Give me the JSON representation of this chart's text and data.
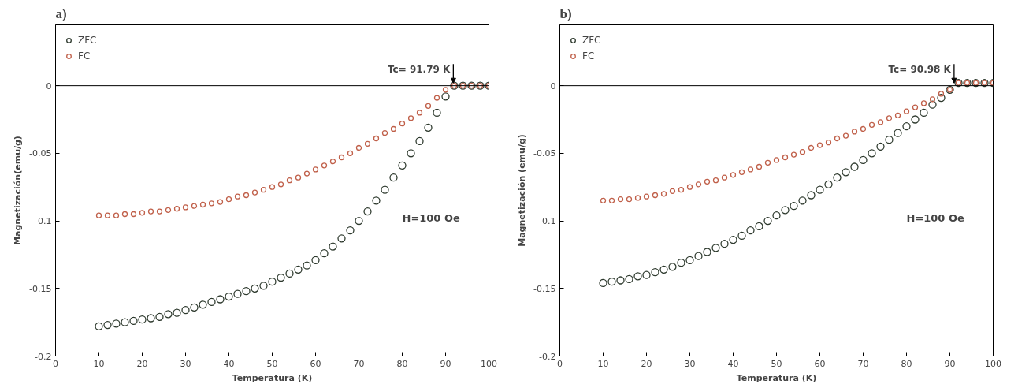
{
  "chart_data": [
    {
      "type": "scatter",
      "title": "a)",
      "xlabel": "Temperatura (K)",
      "ylabel": "Magnetización(emu/g)",
      "x": [
        10,
        12,
        14,
        16,
        18,
        20,
        22,
        24,
        26,
        28,
        30,
        32,
        34,
        36,
        38,
        40,
        42,
        44,
        46,
        48,
        50,
        52,
        54,
        56,
        58,
        60,
        62,
        64,
        66,
        68,
        70,
        72,
        74,
        76,
        78,
        80,
        82,
        84,
        86,
        88,
        90,
        92,
        94,
        96,
        98,
        100
      ],
      "series": [
        {
          "name": "ZFC",
          "color": "#2e3a2e",
          "values": [
            -0.178,
            -0.177,
            -0.176,
            -0.175,
            -0.174,
            -0.173,
            -0.172,
            -0.171,
            -0.169,
            -0.168,
            -0.166,
            -0.164,
            -0.162,
            -0.16,
            -0.158,
            -0.156,
            -0.154,
            -0.152,
            -0.15,
            -0.148,
            -0.145,
            -0.142,
            -0.139,
            -0.136,
            -0.133,
            -0.129,
            -0.124,
            -0.119,
            -0.113,
            -0.107,
            -0.1,
            -0.093,
            -0.085,
            -0.077,
            -0.068,
            -0.059,
            -0.05,
            -0.041,
            -0.031,
            -0.02,
            -0.008,
            0.0,
            0.0,
            0.0,
            0.0,
            0.0
          ]
        },
        {
          "name": "FC",
          "color": "#c0604a",
          "values": [
            -0.096,
            -0.096,
            -0.096,
            -0.095,
            -0.095,
            -0.094,
            -0.093,
            -0.093,
            -0.092,
            -0.091,
            -0.09,
            -0.089,
            -0.088,
            -0.087,
            -0.086,
            -0.084,
            -0.082,
            -0.081,
            -0.079,
            -0.077,
            -0.075,
            -0.073,
            -0.07,
            -0.068,
            -0.065,
            -0.062,
            -0.059,
            -0.056,
            -0.053,
            -0.05,
            -0.046,
            -0.043,
            -0.039,
            -0.035,
            -0.032,
            -0.028,
            -0.024,
            -0.02,
            -0.015,
            -0.009,
            -0.003,
            0.0,
            0.0,
            0.0,
            0.0,
            0.0
          ]
        }
      ],
      "xlim": [
        0,
        100
      ],
      "xticks": [
        0,
        10,
        20,
        30,
        40,
        50,
        60,
        70,
        80,
        90,
        100
      ],
      "ylim": [
        -0.2,
        0.045
      ],
      "yticks": [
        {
          "value": 0,
          "label": "0"
        },
        {
          "value": -0.05,
          "label": "-0.05"
        },
        {
          "value": -0.1,
          "label": "-0.1"
        },
        {
          "value": -0.15,
          "label": "-0.15"
        },
        {
          "value": -0.2,
          "label": "-0.2"
        }
      ],
      "ref_lines": [
        {
          "axis": "y",
          "value": 0,
          "color": "#000000"
        }
      ],
      "annotations": [
        {
          "text": "Tc= 91.79 K",
          "x": 91.79,
          "y": 0
        },
        "H=100 Oe"
      ],
      "marker": "circle",
      "legend": "top left",
      "grid": false
    },
    {
      "type": "scatter",
      "title": "b)",
      "xlabel": "Temperatura (K)",
      "ylabel": "Magnetización (emu/g)",
      "x": [
        10,
        12,
        14,
        16,
        18,
        20,
        22,
        24,
        26,
        28,
        30,
        32,
        34,
        36,
        38,
        40,
        42,
        44,
        46,
        48,
        50,
        52,
        54,
        56,
        58,
        60,
        62,
        64,
        66,
        68,
        70,
        72,
        74,
        76,
        78,
        80,
        82,
        84,
        86,
        88,
        90,
        92,
        94,
        96,
        98,
        100
      ],
      "series": [
        {
          "name": "ZFC",
          "color": "#2e3a2e",
          "values": [
            -0.146,
            -0.145,
            -0.144,
            -0.143,
            -0.141,
            -0.14,
            -0.138,
            -0.136,
            -0.134,
            -0.131,
            -0.129,
            -0.126,
            -0.123,
            -0.12,
            -0.117,
            -0.114,
            -0.111,
            -0.107,
            -0.104,
            -0.1,
            -0.096,
            -0.092,
            -0.089,
            -0.085,
            -0.081,
            -0.077,
            -0.073,
            -0.068,
            -0.064,
            -0.06,
            -0.055,
            -0.05,
            -0.045,
            -0.04,
            -0.035,
            -0.03,
            -0.025,
            -0.02,
            -0.014,
            -0.009,
            -0.003,
            0.002,
            0.002,
            0.002,
            0.002,
            0.002
          ]
        },
        {
          "name": "FC",
          "color": "#c0604a",
          "values": [
            -0.085,
            -0.085,
            -0.084,
            -0.084,
            -0.083,
            -0.082,
            -0.081,
            -0.08,
            -0.078,
            -0.077,
            -0.075,
            -0.073,
            -0.071,
            -0.07,
            -0.068,
            -0.066,
            -0.064,
            -0.062,
            -0.06,
            -0.057,
            -0.055,
            -0.053,
            -0.051,
            -0.049,
            -0.046,
            -0.044,
            -0.042,
            -0.039,
            -0.037,
            -0.034,
            -0.032,
            -0.029,
            -0.027,
            -0.024,
            -0.022,
            -0.019,
            -0.016,
            -0.013,
            -0.01,
            -0.006,
            -0.003,
            0.002,
            0.002,
            0.002,
            0.002,
            0.002
          ]
        }
      ],
      "xlim": [
        0,
        100
      ],
      "xticks": [
        0,
        10,
        20,
        30,
        40,
        50,
        60,
        70,
        80,
        90,
        100
      ],
      "ylim": [
        -0.2,
        0.045
      ],
      "yticks": [
        {
          "value": 0,
          "label": "0"
        },
        {
          "value": -0.05,
          "label": "-0.05"
        },
        {
          "value": -0.1,
          "label": "-0.1"
        },
        {
          "value": -0.15,
          "label": "-0.15"
        },
        {
          "value": -0.2,
          "label": "-0.2"
        }
      ],
      "ref_lines": [
        {
          "axis": "y",
          "value": 0,
          "color": "#000000"
        }
      ],
      "annotations": [
        {
          "text": "Tc= 90.98 K",
          "x": 90.98,
          "y": 0
        },
        "H=100 Oe"
      ],
      "marker": "circle",
      "legend": "top left",
      "grid": false
    }
  ]
}
